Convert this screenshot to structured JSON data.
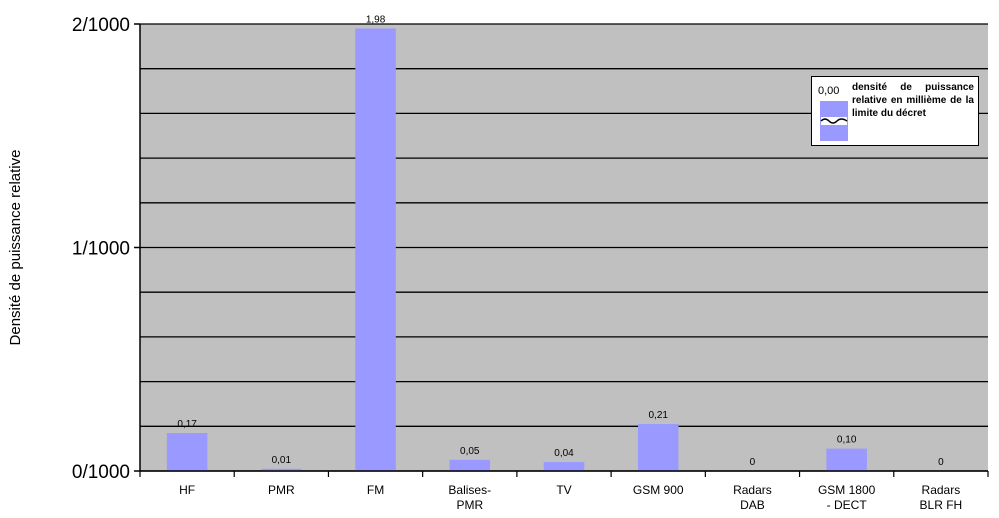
{
  "chart_data": {
    "type": "bar",
    "title": "",
    "xlabel": "",
    "ylabel": "Densité de puissance relative",
    "ylim": [
      0,
      2
    ],
    "ytick_labels": [
      {
        "value": 0,
        "label": "0/1000"
      },
      {
        "value": 1,
        "label": "1/1000"
      },
      {
        "value": 2,
        "label": "2/1000"
      }
    ],
    "minor_gridlines_per_unit": 5,
    "grid": true,
    "categories": [
      [
        "HF"
      ],
      [
        "PMR"
      ],
      [
        "FM"
      ],
      [
        "Balises-",
        "PMR"
      ],
      [
        "TV"
      ],
      [
        "GSM 900"
      ],
      [
        "Radars",
        "DAB"
      ],
      [
        "GSM 1800",
        "- DECT"
      ],
      [
        "Radars",
        "BLR FH"
      ]
    ],
    "series": [
      {
        "name": "densité de puissance relative en millième de la limite du décret",
        "values": [
          0.17,
          0.01,
          1.98,
          0.05,
          0.04,
          0.21,
          0,
          0.1,
          0
        ],
        "data_labels": [
          "0,17",
          "0,01",
          "1,98",
          "0,05",
          "0,04",
          "0,21",
          "0",
          "0,10",
          "0"
        ]
      }
    ],
    "legend": {
      "position": "top-right",
      "value_label": "0,00",
      "text": "densité de puissance relative en millième de la limite du décret"
    },
    "colors": {
      "bar": "#9999ff",
      "plot_background": "#c0c0c0",
      "gridline": "#000000"
    }
  }
}
